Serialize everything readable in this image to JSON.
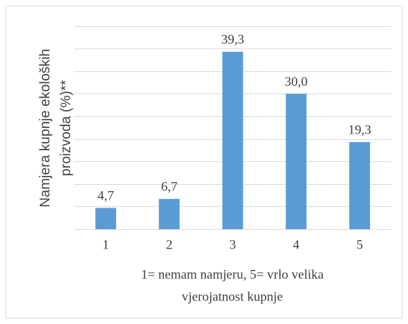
{
  "chart_data": {
    "type": "bar",
    "y_label": [
      "Namjera kupnje ekoloških",
      "proizvoda (%)**"
    ],
    "x_label": [
      "1= nemam namjeru, 5= vrlo velika",
      "vjerojatnost kupnje"
    ],
    "categories": [
      "1",
      "2",
      "3",
      "4",
      "5"
    ],
    "values": [
      4.7,
      6.7,
      39.3,
      30.0,
      19.3
    ],
    "value_labels": [
      "4,7",
      "6,7",
      "39,3",
      "30,0",
      "19,3"
    ],
    "color": "#5b9bd5",
    "ylim": [
      0,
      45
    ],
    "yticks": [
      0,
      5,
      10,
      15,
      20,
      25,
      30,
      35,
      40,
      45
    ],
    "grid": true
  }
}
